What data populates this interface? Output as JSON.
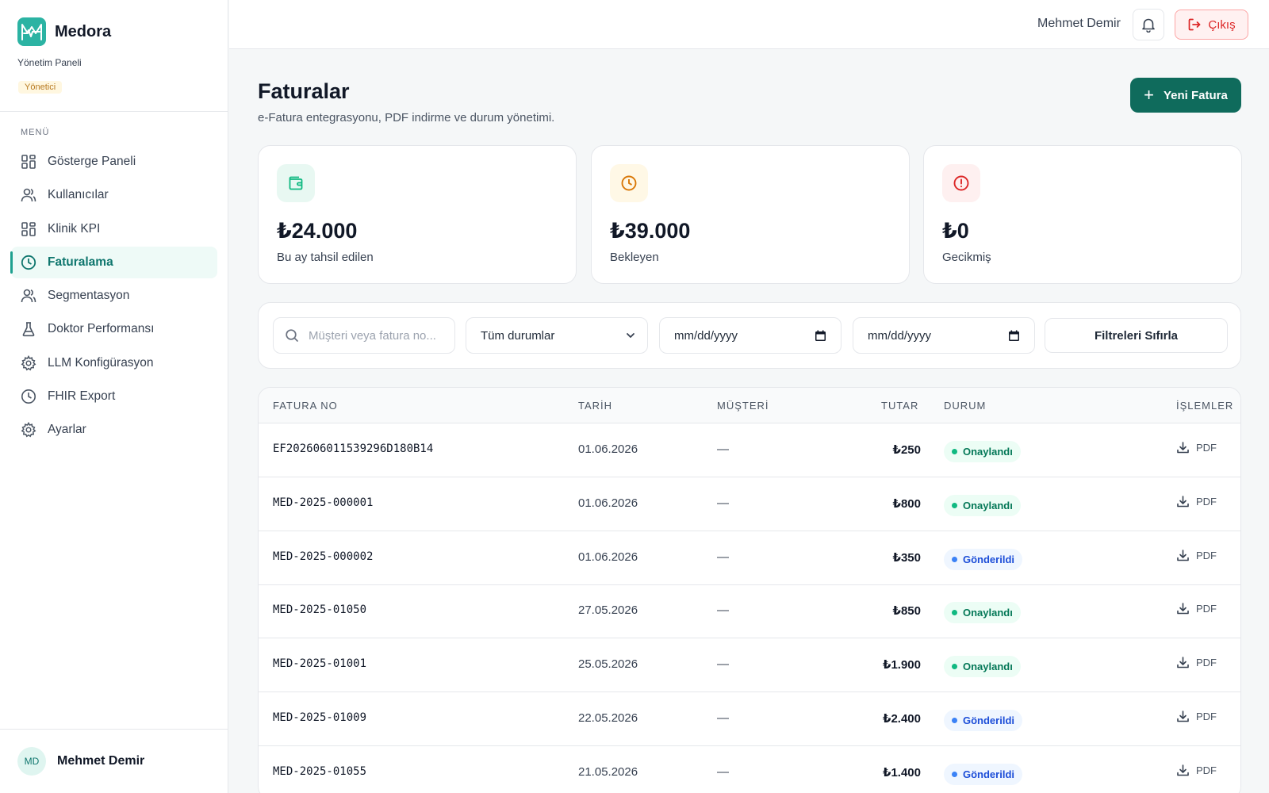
{
  "brand": {
    "name": "Medora",
    "subtitle": "Yönetim Paneli",
    "role": "Yönetici"
  },
  "sidebar": {
    "heading": "MENÜ",
    "items": [
      {
        "label": "Gösterge Paneli",
        "icon": "grid-icon"
      },
      {
        "label": "Kullanıcılar",
        "icon": "users-icon"
      },
      {
        "label": "Klinik KPI",
        "icon": "grid-icon"
      },
      {
        "label": "Faturalama",
        "icon": "clock-icon",
        "active": true
      },
      {
        "label": "Segmentasyon",
        "icon": "users-icon"
      },
      {
        "label": "Doktor Performansı",
        "icon": "flask-icon"
      },
      {
        "label": "LLM Konfigürasyon",
        "icon": "gear-icon"
      },
      {
        "label": "FHIR Export",
        "icon": "clock-icon"
      },
      {
        "label": "Ayarlar",
        "icon": "gear-icon"
      }
    ],
    "user": {
      "initials": "MD",
      "name": "Mehmet Demir"
    }
  },
  "header": {
    "user_name": "Mehmet Demir",
    "logout_label": "Çıkış"
  },
  "page": {
    "title": "Faturalar",
    "subtitle": "e-Fatura entegrasyonu, PDF indirme ve durum yönetimi.",
    "new_button": "Yeni Fatura"
  },
  "stats": [
    {
      "value": "₺24.000",
      "label": "Bu ay tahsil edilen",
      "icon": "wallet-icon",
      "color": "#10b981"
    },
    {
      "value": "₺39.000",
      "label": "Bekleyen",
      "icon": "clock-icon",
      "color": "#d97706"
    },
    {
      "value": "₺0",
      "label": "Gecikmiş",
      "icon": "alert-circle-icon",
      "color": "#dc2626"
    }
  ],
  "filters": {
    "search_placeholder": "Müşteri veya fatura no...",
    "status_value": "Tüm durumlar",
    "date_from": "mm/dd/yyyy",
    "date_to": "mm/dd/yyyy",
    "reset_label": "Filtreleri Sıfırla"
  },
  "table": {
    "columns": [
      "FATURA NO",
      "TARİH",
      "MÜŞTERİ",
      "TUTAR",
      "DURUM",
      "İŞLEMLER"
    ],
    "rows": [
      {
        "no": "EF202606011539296D180B14",
        "date": "01.06.2026",
        "customer": "—",
        "amount": "₺250",
        "status": "Onaylandı",
        "status_type": "ok",
        "action": "PDF"
      },
      {
        "no": "MED-2025-000001",
        "date": "01.06.2026",
        "customer": "—",
        "amount": "₺800",
        "status": "Onaylandı",
        "status_type": "ok",
        "action": "PDF"
      },
      {
        "no": "MED-2025-000002",
        "date": "01.06.2026",
        "customer": "—",
        "amount": "₺350",
        "status": "Gönderildi",
        "status_type": "sent",
        "action": "PDF"
      },
      {
        "no": "MED-2025-01050",
        "date": "27.05.2026",
        "customer": "—",
        "amount": "₺850",
        "status": "Onaylandı",
        "status_type": "ok",
        "action": "PDF"
      },
      {
        "no": "MED-2025-01001",
        "date": "25.05.2026",
        "customer": "—",
        "amount": "₺1.900",
        "status": "Onaylandı",
        "status_type": "ok",
        "action": "PDF"
      },
      {
        "no": "MED-2025-01009",
        "date": "22.05.2026",
        "customer": "—",
        "amount": "₺2.400",
        "status": "Gönderildi",
        "status_type": "sent",
        "action": "PDF"
      },
      {
        "no": "MED-2025-01055",
        "date": "21.05.2026",
        "customer": "—",
        "amount": "₺1.400",
        "status": "Gönderildi",
        "status_type": "sent",
        "action": "PDF"
      }
    ]
  },
  "colors": {
    "accent": "#0f6b5c",
    "brand": "#2bb3a3",
    "danger": "#dc2626"
  }
}
